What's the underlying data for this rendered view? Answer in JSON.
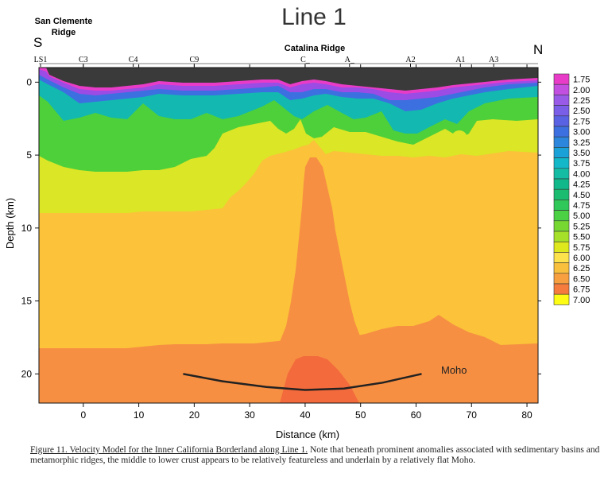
{
  "chart_data": {
    "type": "heatmap",
    "title": "Line 1",
    "xlabel": "Distance (km)",
    "ylabel": "Depth (km)",
    "xlim": [
      -8,
      82
    ],
    "ylim": [
      22,
      -1
    ],
    "x_ticks": [
      0,
      10,
      20,
      30,
      40,
      50,
      60,
      70,
      80
    ],
    "y_ticks": [
      0,
      5,
      10,
      15,
      20
    ],
    "direction_labels": {
      "south": "S",
      "north": "N"
    },
    "ridge_labels": {
      "san_clemente": [
        "San Clemente",
        "Ridge"
      ],
      "catalina": "Catalina Ridge"
    },
    "stations": [
      {
        "label": "LS1",
        "x": -8
      },
      {
        "label": "C3",
        "x": 0
      },
      {
        "label": "C4",
        "x": 9
      },
      {
        "label": "C9",
        "x": 20
      },
      {
        "label": "C_",
        "x": 40
      },
      {
        "label": "A_",
        "x": 48
      },
      {
        "label": "A2",
        "x": 59
      },
      {
        "label": "A1",
        "x": 68
      },
      {
        "label": "A3",
        "x": 74
      }
    ],
    "colorbar": {
      "values": [
        "1.75",
        "2.00",
        "2.25",
        "2.50",
        "2.75",
        "3.00",
        "3.25",
        "3.50",
        "3.75",
        "4.00",
        "4.25",
        "4.50",
        "4.75",
        "5.00",
        "5.25",
        "5.50",
        "5.75",
        "6.00",
        "6.25",
        "6.50",
        "6.75",
        "7.00"
      ],
      "colors": [
        "#e83cc8",
        "#c24fe0",
        "#9a5ae8",
        "#7a5ee8",
        "#5a62e4",
        "#3c70e0",
        "#2b86dc",
        "#1aa2d8",
        "#13b8c8",
        "#14bca4",
        "#10b88a",
        "#1cbc70",
        "#30c858",
        "#4cd044",
        "#78d832",
        "#a6e028",
        "#dfe81c",
        "#fde24c",
        "#f8c03c",
        "#f8a040",
        "#f57c3c",
        "#fcfc14"
      ]
    },
    "annotations": {
      "moho": "Moho"
    },
    "moho_curve": [
      [
        18,
        20.0
      ],
      [
        25,
        20.5
      ],
      [
        33,
        20.9
      ],
      [
        40,
        21.1
      ],
      [
        47,
        21.0
      ],
      [
        54,
        20.6
      ],
      [
        61,
        20.0
      ]
    ]
  },
  "caption": {
    "lead": "Figure 11. Velocity Model for the Inner California Borderland along Line 1.",
    "body": " Note that beneath prominent anomalies associated with sedimentary basins and metamorphic ridges, the middle to lower crust appears to be relatively featureless and underlain by a relatively flat Moho."
  }
}
